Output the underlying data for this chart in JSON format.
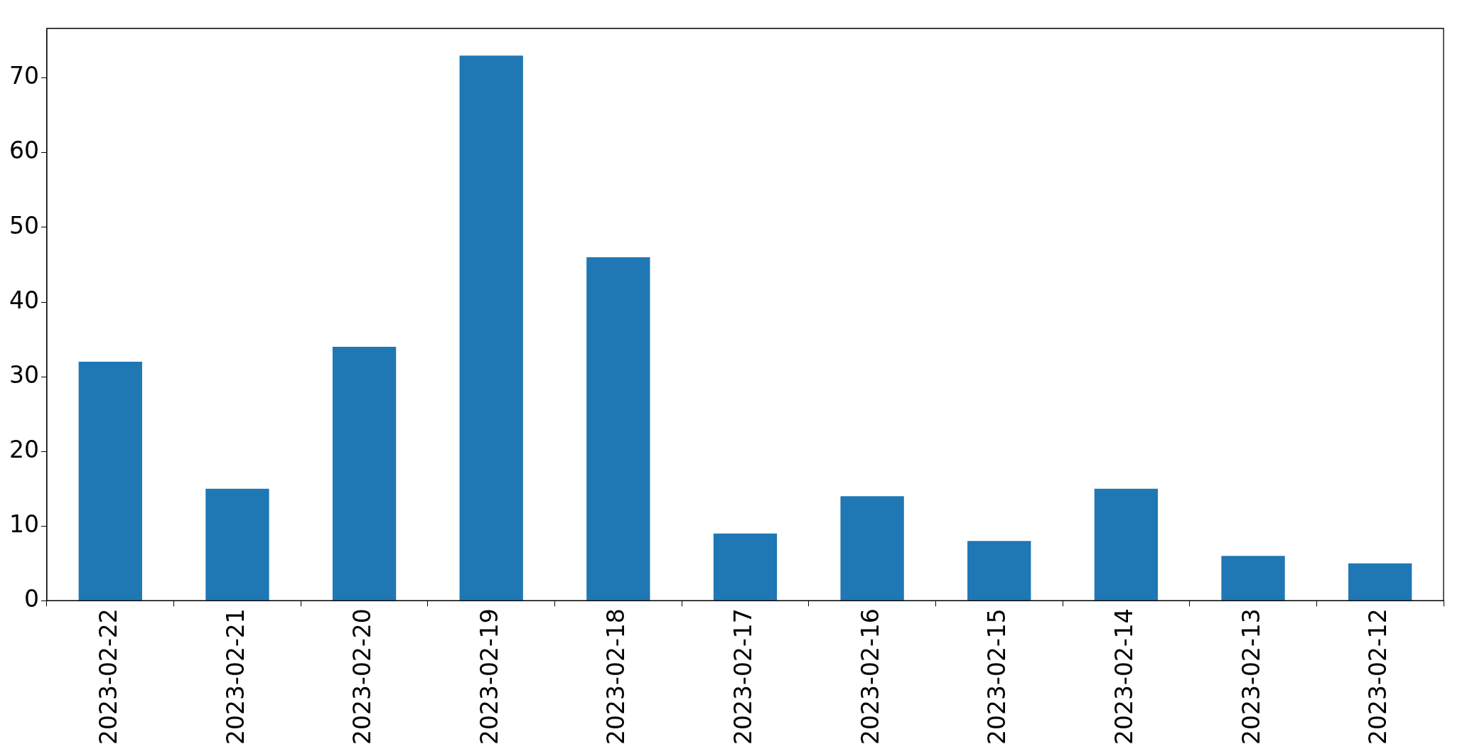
{
  "chart_data": {
    "type": "bar",
    "categories": [
      "2023-02-22",
      "2023-02-21",
      "2023-02-20",
      "2023-02-19",
      "2023-02-18",
      "2023-02-17",
      "2023-02-16",
      "2023-02-15",
      "2023-02-14",
      "2023-02-13",
      "2023-02-12"
    ],
    "values": [
      32,
      15,
      34,
      73,
      46,
      9,
      14,
      8,
      15,
      6,
      5
    ],
    "color": "#1f77b4",
    "ylim": [
      0,
      76.65
    ],
    "yticks": [
      0,
      10,
      20,
      30,
      40,
      50,
      60,
      70
    ]
  }
}
